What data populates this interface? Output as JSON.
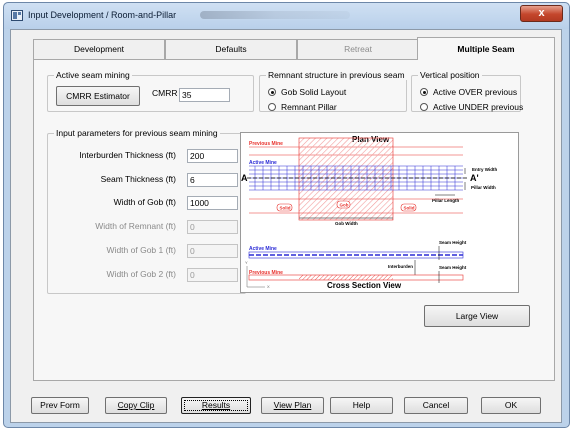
{
  "window": {
    "title": "Input Development / Room-and-Pillar",
    "close_label": "x"
  },
  "tabs": [
    {
      "label": "Development",
      "state": "normal"
    },
    {
      "label": "Defaults",
      "state": "normal"
    },
    {
      "label": "Retreat",
      "state": "disabled"
    },
    {
      "label": "Multiple Seam",
      "state": "active"
    }
  ],
  "active_seam": {
    "group_label": "Active seam mining",
    "cmrr_button": "CMRR Estimator",
    "cmrr_label": "CMRR",
    "cmrr_value": "35"
  },
  "remnant": {
    "group_label": "Remnant structure in previous seam",
    "option_gob": "Gob Solid Layout",
    "option_pillar": "Remnant Pillar",
    "selected": "gob"
  },
  "vertical": {
    "group_label": "Vertical position",
    "option_over": "Active OVER previous",
    "option_under": "Active UNDER previous",
    "selected": "over"
  },
  "previous_seam": {
    "group_label": "Input parameters for previous seam mining",
    "fields": [
      {
        "label": "Interburden Thickness (ft)",
        "value": "200",
        "enabled": true
      },
      {
        "label": "Seam Thickness (ft)",
        "value": "6",
        "enabled": true
      },
      {
        "label": "Width of Gob (ft)",
        "value": "1000",
        "enabled": true
      },
      {
        "label": "Width of Remnant (ft)",
        "value": "0",
        "enabled": false
      },
      {
        "label": "Width of Gob 1 (ft)",
        "value": "0",
        "enabled": false
      },
      {
        "label": "Width of Gob 2 (ft)",
        "value": "0",
        "enabled": false
      }
    ]
  },
  "diagram": {
    "plan_title": "Plan View",
    "section_title": "Cross Section View",
    "previous_mine": "Previous Mine",
    "active_mine": "Active Mine",
    "label_a_left": "A",
    "label_a_right": "A'",
    "entry_width": "Entry Width",
    "pillar_width": "Pillar Width",
    "pillar_length": "Pillar Length",
    "solid": "Solid",
    "gob": "Gob",
    "gob_width": "Gob Width",
    "seam_height": "Seam Height",
    "interburden": "Interburden",
    "axis_y": "Y",
    "axis_x": "X",
    "colors": {
      "red": "#e8312c",
      "blue": "#2b2bd6",
      "hatch": "#f29c9c"
    }
  },
  "large_view_button": "Large View",
  "bottom_buttons": {
    "prev_form": "Prev Form",
    "copy_clip": "Copy Clip",
    "results": "Results",
    "view_plan": "View Plan",
    "help": "Help",
    "cancel": "Cancel",
    "ok": "OK"
  }
}
